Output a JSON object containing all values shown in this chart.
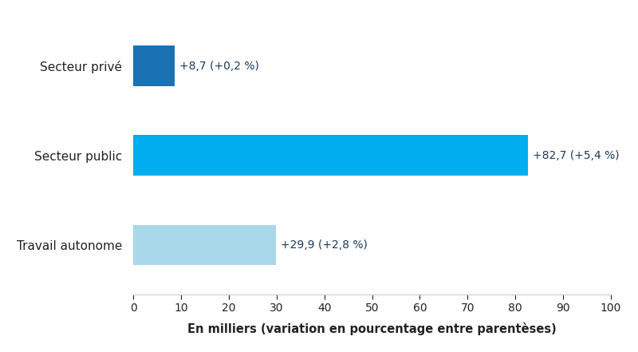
{
  "categories": [
    "Secteur privé",
    "Secteur public",
    "Travail autonome"
  ],
  "values": [
    8.7,
    82.7,
    29.9
  ],
  "bar_colors": [
    "#1a72b5",
    "#00aeef",
    "#a8d8ea"
  ],
  "annotations": [
    "+8,7 (+0,2 %)",
    "+82,7 (+5,4 %)",
    "+29,9 (+2,8 %)"
  ],
  "xlabel": "En milliers (variation en pourcentage entre parentèses)",
  "xlim": [
    0,
    100
  ],
  "xticks": [
    0,
    10,
    20,
    30,
    40,
    50,
    60,
    70,
    80,
    90,
    100
  ],
  "bar_height": 0.45,
  "annotation_color": "#1a3a5c",
  "label_color": "#222222",
  "background_color": "#ffffff",
  "xlabel_fontsize": 10.5,
  "tick_fontsize": 10,
  "label_fontsize": 11,
  "annotation_fontsize": 10
}
